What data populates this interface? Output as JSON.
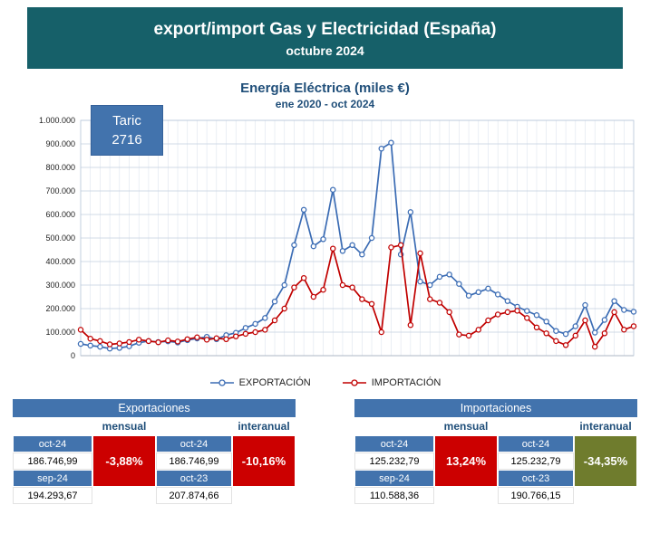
{
  "header": {
    "title": "export/import Gas y Electricidad (España)",
    "subtitle": "octubre 2024"
  },
  "taric": {
    "label": "Taric",
    "code": "2716"
  },
  "colors": {
    "banner_teal": "#166069",
    "accent_blue": "#4273ad",
    "title_blue": "#1f4e79",
    "negative_red": "#cc0000",
    "interanual_olive": "#6f7c2d",
    "export_blue": "#3b6cb4",
    "import_red": "#c00000"
  },
  "chart_data": {
    "type": "line",
    "title": "Energía Eléctrica (miles €)",
    "subtitle": "ene 2020 - oct 2024",
    "x_range": [
      "ene 2020",
      "oct 2024"
    ],
    "x_interval": "monthly",
    "points": 58,
    "ylim": [
      0,
      1000000
    ],
    "ytick_step": 100000,
    "grid": true,
    "legend_position": "bottom",
    "series": [
      {
        "name": "EXPORTACIÓN",
        "color": "#3b6cb4",
        "values": [
          50000,
          43000,
          38000,
          30000,
          33000,
          40000,
          55000,
          62000,
          58000,
          61000,
          56000,
          66000,
          73000,
          80000,
          70000,
          87000,
          97000,
          118000,
          135000,
          160000,
          230000,
          300000,
          470000,
          620000,
          465000,
          495000,
          705000,
          445000,
          470000,
          430000,
          500000,
          880000,
          905000,
          430000,
          610000,
          315000,
          300000,
          335000,
          345000,
          305000,
          255000,
          270000,
          285000,
          260000,
          232000,
          207874.66,
          190000,
          172000,
          145000,
          105000,
          92000,
          125000,
          215000,
          98000,
          152000,
          232000,
          194293.67,
          186746.99
        ]
      },
      {
        "name": "IMPORTACIÓN",
        "color": "#c00000",
        "values": [
          110000,
          72000,
          62000,
          48000,
          52000,
          58000,
          68000,
          62000,
          57000,
          65000,
          60000,
          70000,
          78000,
          68000,
          74000,
          70000,
          82000,
          93000,
          100000,
          110000,
          150000,
          200000,
          290000,
          330000,
          250000,
          280000,
          455000,
          300000,
          290000,
          240000,
          220000,
          100000,
          460000,
          470000,
          130000,
          435000,
          240000,
          225000,
          185000,
          90000,
          85000,
          110000,
          150000,
          175000,
          185000,
          190766.15,
          160000,
          120000,
          95000,
          62000,
          45000,
          85000,
          150000,
          38000,
          95000,
          185000,
          110588.36,
          125232.79
        ]
      }
    ]
  },
  "tables": {
    "export": {
      "title": "Exportaciones",
      "mensual_label": "mensual",
      "interanual_label": "interanual",
      "mensual": {
        "pct": "-3,88%",
        "pct_color": "#cc0000",
        "rows": [
          {
            "label": "oct-24",
            "value": "186.746,99"
          },
          {
            "label": "sep-24",
            "value": "194.293,67"
          }
        ]
      },
      "interanual": {
        "pct": "-10,16%",
        "pct_color": "#cc0000",
        "rows": [
          {
            "label": "oct-24",
            "value": "186.746,99"
          },
          {
            "label": "oct-23",
            "value": "207.874,66"
          }
        ]
      }
    },
    "import": {
      "title": "Importaciones",
      "mensual_label": "mensual",
      "interanual_label": "interanual",
      "mensual": {
        "pct": "13,24%",
        "pct_color": "#cc0000",
        "rows": [
          {
            "label": "oct-24",
            "value": "125.232,79"
          },
          {
            "label": "sep-24",
            "value": "110.588,36"
          }
        ]
      },
      "interanual": {
        "pct": "-34,35%",
        "pct_color": "#6f7c2d",
        "rows": [
          {
            "label": "oct-24",
            "value": "125.232,79"
          },
          {
            "label": "oct-23",
            "value": "190.766,15"
          }
        ]
      }
    }
  }
}
